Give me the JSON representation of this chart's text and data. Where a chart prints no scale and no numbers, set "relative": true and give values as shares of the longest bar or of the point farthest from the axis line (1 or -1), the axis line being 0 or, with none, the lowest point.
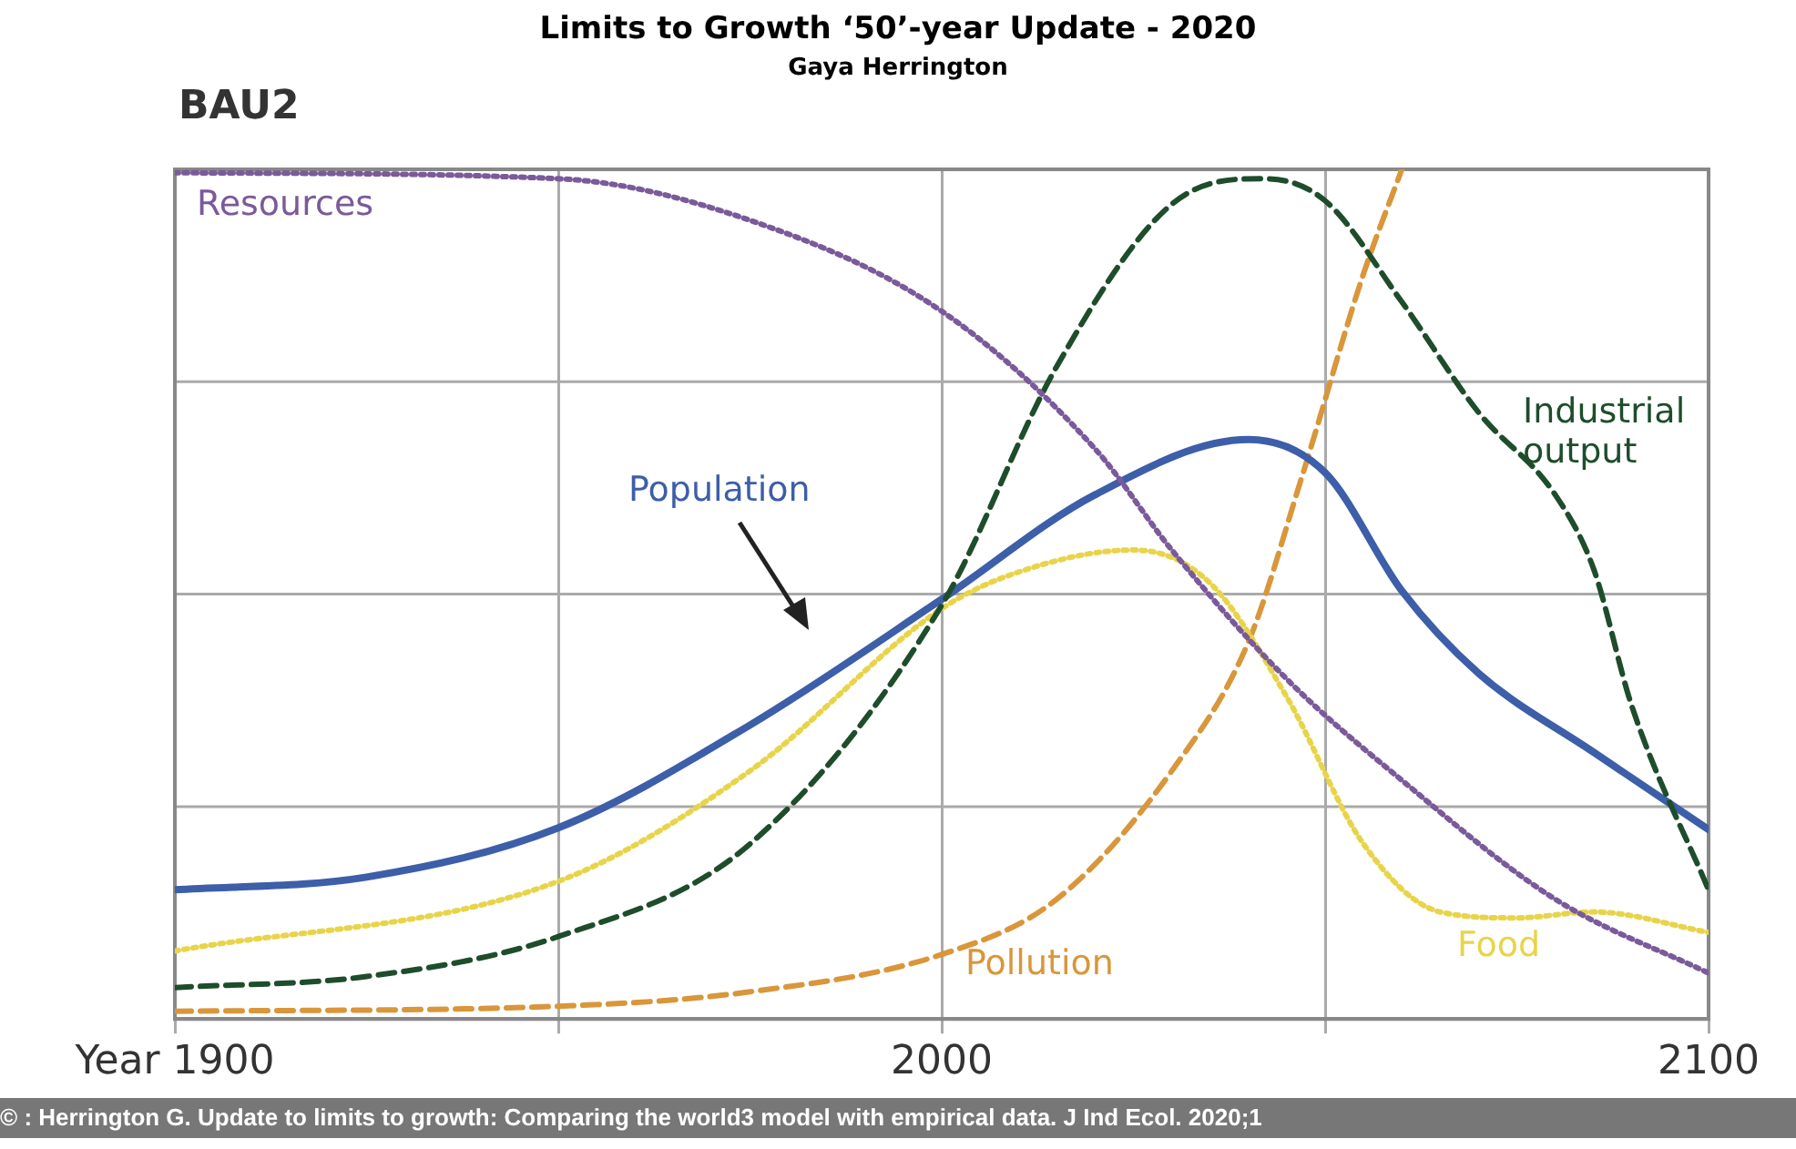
{
  "chart_data": {
    "type": "line",
    "title": "Limits to Growth ‘50’-year Update - 2020",
    "subtitle": "Gaya Herrington",
    "annotations": [
      "BAU2",
      "© : Herrington G. Update to limits to growth: Comparing the world3 model with empirical data. J Ind Ecol. 2020;1"
    ],
    "relative": true,
    "grid": true,
    "legend": false,
    "marker": "none",
    "xlim": [
      1900,
      2100
    ],
    "xticks": [
      {
        "value": 1900,
        "label": "Year 1900"
      },
      {
        "value": 1950,
        "label": null
      },
      2000,
      {
        "value": 2050,
        "label": null
      },
      2100
    ],
    "series": [
      {
        "name": "Resources",
        "color": "#7a5a9a",
        "line_style": "dotted",
        "x": [
          1900,
          1950,
          1975,
          2000,
          2020,
          2030,
          2045,
          2060,
          2080,
          2100
        ],
        "values": [
          0.996,
          0.989,
          0.94,
          0.833,
          0.671,
          0.552,
          0.4,
          0.281,
          0.141,
          0.054
        ]
      },
      {
        "name": "Industrial output",
        "color": "#1e4d2b",
        "line_style": "dashed",
        "x": [
          1900,
          1925,
          1950,
          1975,
          2000,
          2015,
          2030,
          2042,
          2050,
          2060,
          2070,
          2080,
          2085,
          2090,
          2100
        ],
        "values": [
          0.037,
          0.05,
          0.097,
          0.206,
          0.487,
          0.768,
          0.959,
          0.989,
          0.963,
          0.844,
          0.714,
          0.617,
          0.53,
          0.368,
          0.152
        ]
      },
      {
        "name": "Population",
        "color": "#3d5ea8",
        "line_style": "solid",
        "x": [
          1900,
          1925,
          1950,
          1975,
          2000,
          2020,
          2040,
          2050,
          2060,
          2070,
          2085,
          2100
        ],
        "values": [
          0.152,
          0.167,
          0.225,
          0.346,
          0.494,
          0.617,
          0.682,
          0.643,
          0.504,
          0.407,
          0.314,
          0.223
        ]
      },
      {
        "name": "Food",
        "color": "#e8d44a",
        "line_style": "dotted",
        "x": [
          1900,
          1950,
          1975,
          2000,
          2010,
          2025,
          2035,
          2045,
          2055,
          2065,
          2075,
          2085,
          2100
        ],
        "values": [
          0.08,
          0.162,
          0.292,
          0.483,
          0.526,
          0.552,
          0.513,
          0.379,
          0.206,
          0.126,
          0.119,
          0.126,
          0.102
        ]
      },
      {
        "name": "Pollution",
        "color": "#d9963a",
        "line_style": "dashed",
        "x": [
          1900,
          1950,
          1975,
          2000,
          2015,
          2030,
          2040,
          2047,
          2055,
          2060
        ],
        "values": [
          0.009,
          0.015,
          0.032,
          0.076,
          0.141,
          0.292,
          0.444,
          0.639,
          0.877,
          1.0
        ]
      }
    ]
  }
}
